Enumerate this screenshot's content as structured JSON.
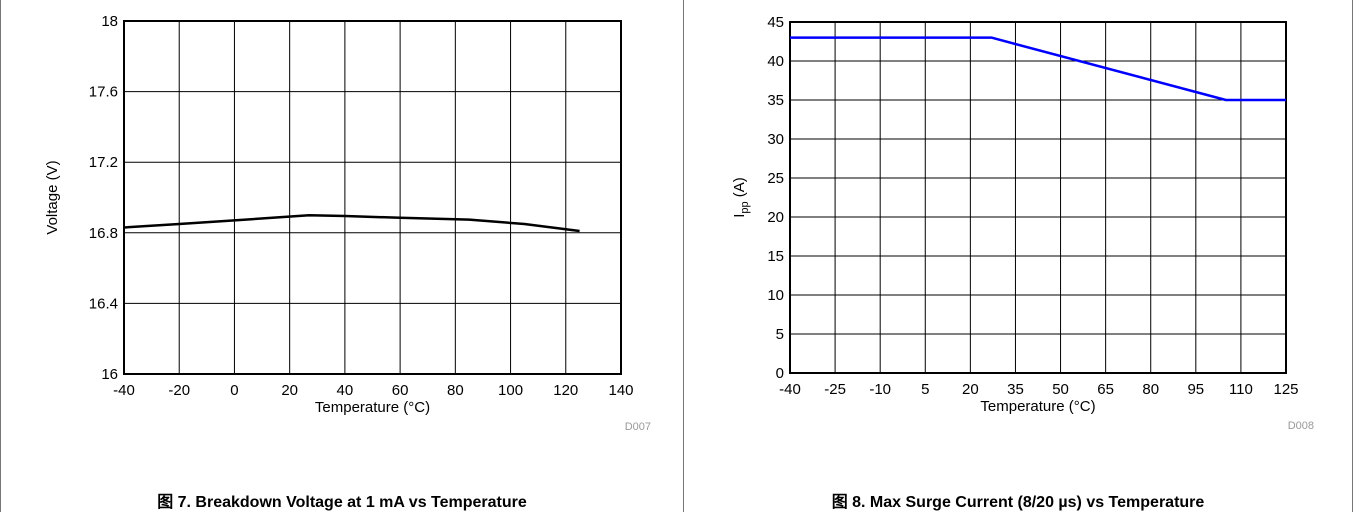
{
  "chart_data": [
    {
      "type": "line",
      "xlabel": "Temperature (°C)",
      "ylabel": "Voltage (V)",
      "xlim": [
        -40,
        140
      ],
      "ylim": [
        16,
        18
      ],
      "x_ticks": [
        "-40",
        "-20",
        "0",
        "20",
        "40",
        "60",
        "80",
        "100",
        "120",
        "140"
      ],
      "x_tick_values": [
        -40,
        -20,
        0,
        20,
        40,
        60,
        80,
        100,
        120,
        140
      ],
      "y_ticks": [
        "16",
        "16.4",
        "16.8",
        "17.2",
        "17.6",
        "18"
      ],
      "y_tick_values": [
        16,
        16.4,
        16.8,
        17.2,
        17.6,
        18
      ],
      "grid": true,
      "series": [
        {
          "color": "#000000",
          "x": [
            -40,
            -20,
            0,
            27,
            40,
            60,
            85,
            105,
            125
          ],
          "y": [
            16.83,
            16.85,
            16.87,
            16.9,
            16.895,
            16.885,
            16.875,
            16.85,
            16.81
          ]
        }
      ],
      "code": "D007",
      "caption": "图 7. Breakdown Voltage at 1 mA vs Temperature"
    },
    {
      "type": "line",
      "xlabel": "Temperature (°C)",
      "ylabel": "Ipp (A)",
      "ylabel_main": "I",
      "ylabel_sub": "pp",
      "ylabel_rest": " (A)",
      "xlim": [
        -40,
        125
      ],
      "ylim": [
        0,
        45
      ],
      "x_ticks": [
        "-40",
        "-25",
        "-10",
        "5",
        "20",
        "35",
        "50",
        "65",
        "80",
        "95",
        "110",
        "125"
      ],
      "x_tick_values": [
        -40,
        -25,
        -10,
        5,
        20,
        35,
        50,
        65,
        80,
        95,
        110,
        125
      ],
      "y_ticks": [
        "0",
        "5",
        "10",
        "15",
        "20",
        "25",
        "30",
        "35",
        "40",
        "45"
      ],
      "y_tick_values": [
        0,
        5,
        10,
        15,
        20,
        25,
        30,
        35,
        40,
        45
      ],
      "grid": true,
      "series": [
        {
          "color": "#0000ff",
          "x": [
            -40,
            27,
            105,
            125
          ],
          "y": [
            43,
            43,
            35,
            35
          ]
        }
      ],
      "code": "D008",
      "caption": "图 8. Max Surge Current (8/20 µs) vs Temperature"
    }
  ]
}
